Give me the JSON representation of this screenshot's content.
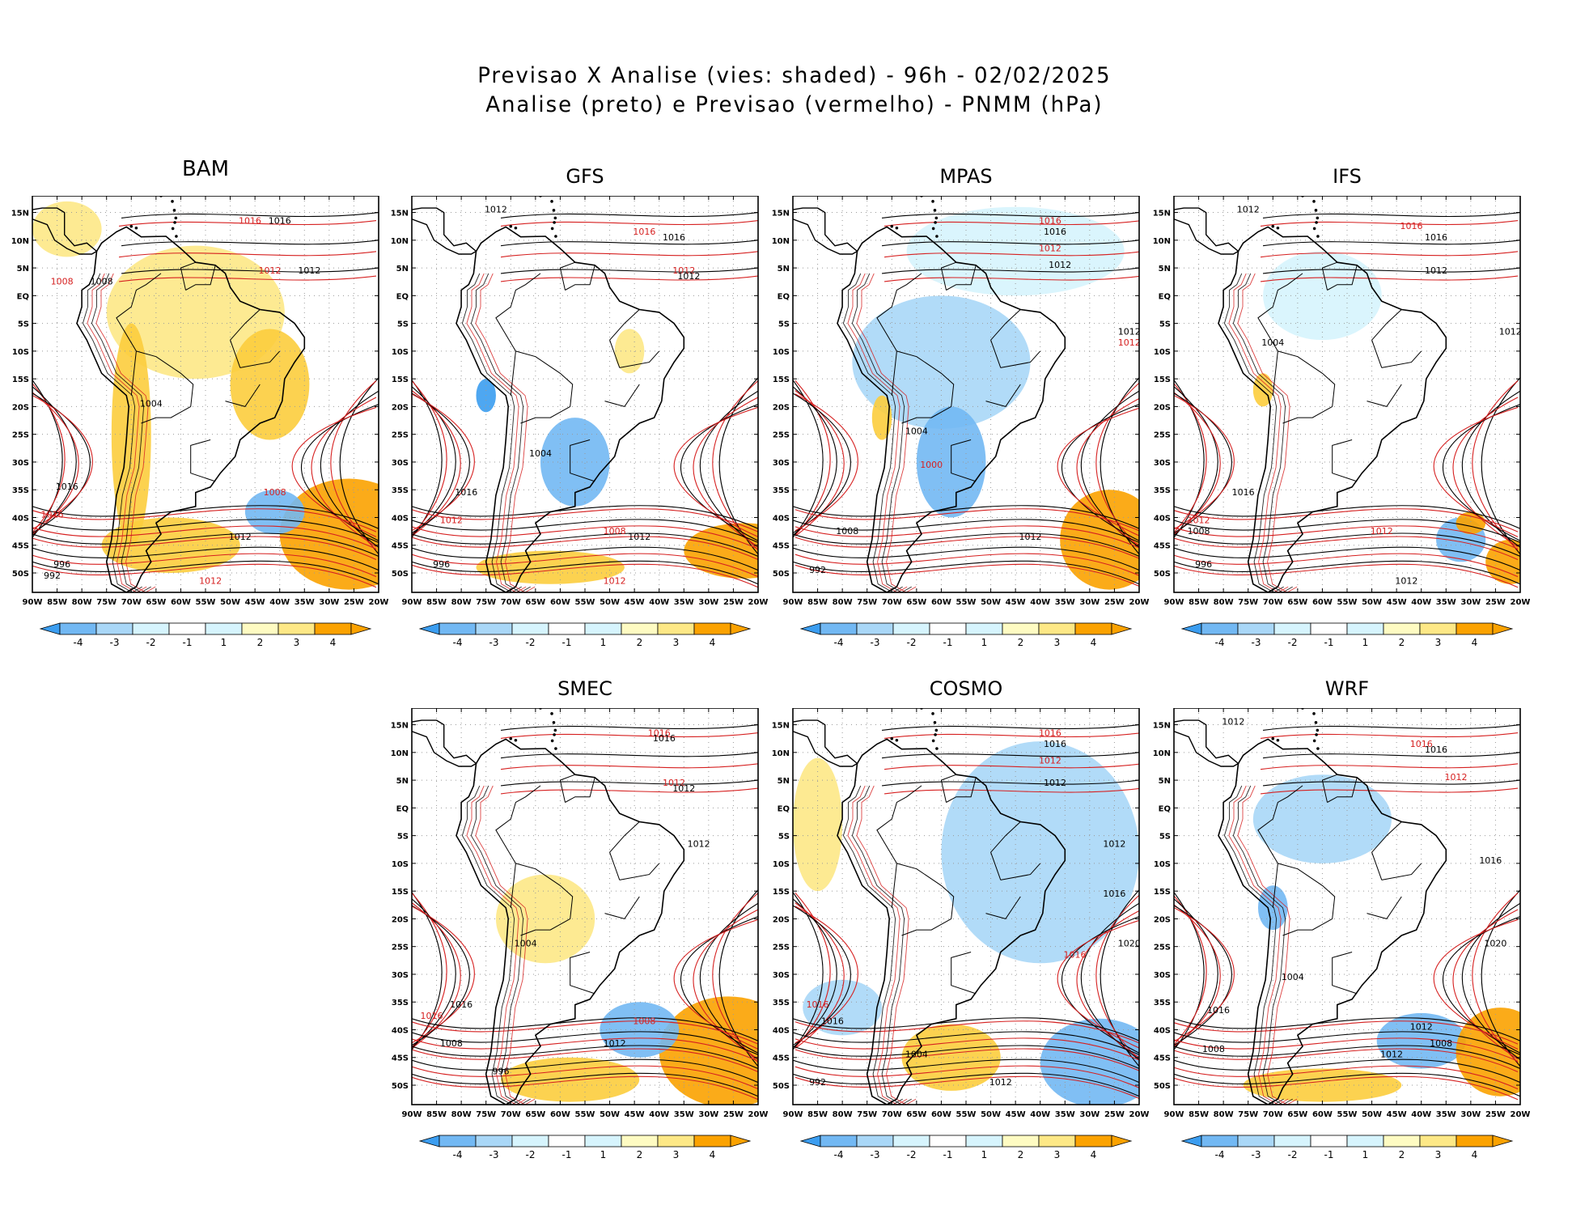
{
  "title": {
    "line1": "Previsao X Analise (vies: shaded) - 96h - 02/02/2025",
    "line2": "Analise (preto) e Previsao (vermelho) - PNMM (hPa)"
  },
  "colors": {
    "neg4": "#3b9df0",
    "neg3": "#72b8f3",
    "neg2": "#a9d7f7",
    "neg1": "#d6f4fd",
    "pos1": "#fefbc2",
    "pos2": "#fde886",
    "pos3": "#fccd3d",
    "pos4": "#fba200",
    "analysis": "#000000",
    "forecast": "#d62020"
  },
  "axes": {
    "lon_ticks": [
      "90W",
      "85W",
      "80W",
      "75W",
      "70W",
      "65W",
      "60W",
      "55W",
      "50W",
      "45W",
      "40W",
      "35W",
      "30W",
      "25W",
      "20W"
    ],
    "lat_ticks": [
      "15N",
      "10N",
      "5N",
      "EQ",
      "5S",
      "10S",
      "15S",
      "20S",
      "25S",
      "30S",
      "35S",
      "40S",
      "45S",
      "50S"
    ]
  },
  "colorbar_labels": [
    "-4",
    "-3",
    "-2",
    "-1",
    "1",
    "2",
    "3",
    "4"
  ],
  "panels": [
    {
      "id": "bam",
      "name": "BAM",
      "blobs": [
        {
          "lon": -83,
          "lat": 12,
          "rx": 7,
          "ry": 5,
          "c": "pos2"
        },
        {
          "lon": -57,
          "lat": -3,
          "rx": 18,
          "ry": 12,
          "c": "pos2"
        },
        {
          "lon": -42,
          "lat": -16,
          "rx": 8,
          "ry": 10,
          "c": "pos3"
        },
        {
          "lon": -70,
          "lat": -25,
          "rx": 4,
          "ry": 20,
          "c": "pos3"
        },
        {
          "lon": -26,
          "lat": -43,
          "rx": 14,
          "ry": 10,
          "c": "pos4"
        },
        {
          "lon": -62,
          "lat": -45,
          "rx": 14,
          "ry": 5,
          "c": "pos3"
        },
        {
          "lon": -41,
          "lat": -39,
          "rx": 6,
          "ry": 4,
          "c": "neg3"
        }
      ],
      "labels": [
        {
          "lon": -40,
          "lat": 13,
          "t": "1016",
          "c": "analysis"
        },
        {
          "lon": -46,
          "lat": 13,
          "t": "1016",
          "c": "forecast"
        },
        {
          "lon": -84,
          "lat": 2,
          "t": "1008",
          "c": "forecast"
        },
        {
          "lon": -76,
          "lat": 2,
          "t": "1008",
          "c": "analysis"
        },
        {
          "lon": -34,
          "lat": 4,
          "t": "1012",
          "c": "analysis"
        },
        {
          "lon": -42,
          "lat": 4,
          "t": "1012",
          "c": "forecast"
        },
        {
          "lon": -66,
          "lat": -20,
          "t": "1004",
          "c": "analysis"
        },
        {
          "lon": -83,
          "lat": -35,
          "t": "1016",
          "c": "analysis"
        },
        {
          "lon": -86,
          "lat": -40,
          "t": "1016",
          "c": "forecast"
        },
        {
          "lon": -41,
          "lat": -36,
          "t": "1008",
          "c": "forecast"
        },
        {
          "lon": -48,
          "lat": -44,
          "t": "1012",
          "c": "analysis"
        },
        {
          "lon": -54,
          "lat": -52,
          "t": "1012",
          "c": "forecast"
        },
        {
          "lon": -84,
          "lat": -49,
          "t": "996",
          "c": "analysis"
        },
        {
          "lon": -86,
          "lat": -51,
          "t": "992",
          "c": "analysis"
        }
      ]
    },
    {
      "id": "gfs",
      "name": "GFS",
      "blobs": [
        {
          "lon": -57,
          "lat": -30,
          "rx": 7,
          "ry": 8,
          "c": "neg3"
        },
        {
          "lon": -46,
          "lat": -10,
          "rx": 3,
          "ry": 4,
          "c": "pos2"
        },
        {
          "lon": -23,
          "lat": -46,
          "rx": 12,
          "ry": 5,
          "c": "pos4"
        },
        {
          "lon": -62,
          "lat": -49,
          "rx": 15,
          "ry": 3,
          "c": "pos3"
        },
        {
          "lon": -75,
          "lat": -18,
          "rx": 2,
          "ry": 3,
          "c": "neg4"
        }
      ],
      "labels": [
        {
          "lon": -73,
          "lat": 15,
          "t": "1012",
          "c": "analysis"
        },
        {
          "lon": -43,
          "lat": 11,
          "t": "1016",
          "c": "forecast"
        },
        {
          "lon": -37,
          "lat": 10,
          "t": "1016",
          "c": "analysis"
        },
        {
          "lon": -35,
          "lat": 4,
          "t": "1012",
          "c": "forecast"
        },
        {
          "lon": -34,
          "lat": 3,
          "t": "1012",
          "c": "analysis"
        },
        {
          "lon": -64,
          "lat": -29,
          "t": "1004",
          "c": "analysis"
        },
        {
          "lon": -79,
          "lat": -36,
          "t": "1016",
          "c": "analysis"
        },
        {
          "lon": -82,
          "lat": -41,
          "t": "1012",
          "c": "forecast"
        },
        {
          "lon": -49,
          "lat": -43,
          "t": "1008",
          "c": "forecast"
        },
        {
          "lon": -44,
          "lat": -44,
          "t": "1012",
          "c": "analysis"
        },
        {
          "lon": -84,
          "lat": -49,
          "t": "996",
          "c": "analysis"
        },
        {
          "lon": -49,
          "lat": -52,
          "t": "1012",
          "c": "forecast"
        }
      ]
    },
    {
      "id": "mpas",
      "name": "MPAS",
      "blobs": [
        {
          "lon": -45,
          "lat": 8,
          "rx": 22,
          "ry": 8,
          "c": "neg1"
        },
        {
          "lon": -60,
          "lat": -12,
          "rx": 18,
          "ry": 12,
          "c": "neg2"
        },
        {
          "lon": -58,
          "lat": -30,
          "rx": 7,
          "ry": 10,
          "c": "neg3"
        },
        {
          "lon": -26,
          "lat": -44,
          "rx": 10,
          "ry": 9,
          "c": "pos4"
        },
        {
          "lon": -72,
          "lat": -22,
          "rx": 2,
          "ry": 4,
          "c": "pos3"
        }
      ],
      "labels": [
        {
          "lon": -38,
          "lat": 13,
          "t": "1016",
          "c": "forecast"
        },
        {
          "lon": -37,
          "lat": 11,
          "t": "1016",
          "c": "analysis"
        },
        {
          "lon": -38,
          "lat": 8,
          "t": "1012",
          "c": "forecast"
        },
        {
          "lon": -36,
          "lat": 5,
          "t": "1012",
          "c": "analysis"
        },
        {
          "lon": -22,
          "lat": -7,
          "t": "1012",
          "c": "analysis"
        },
        {
          "lon": -22,
          "lat": -9,
          "t": "1012",
          "c": "forecast"
        },
        {
          "lon": -65,
          "lat": -25,
          "t": "1004",
          "c": "analysis"
        },
        {
          "lon": -62,
          "lat": -31,
          "t": "1000",
          "c": "forecast"
        },
        {
          "lon": -79,
          "lat": -43,
          "t": "1008",
          "c": "analysis"
        },
        {
          "lon": -42,
          "lat": -44,
          "t": "1012",
          "c": "analysis"
        },
        {
          "lon": -85,
          "lat": -50,
          "t": "992",
          "c": "analysis"
        }
      ]
    },
    {
      "id": "ifs",
      "name": "IFS",
      "blobs": [
        {
          "lon": -72,
          "lat": -17,
          "rx": 2,
          "ry": 3,
          "c": "pos3"
        },
        {
          "lon": -60,
          "lat": 0,
          "rx": 12,
          "ry": 8,
          "c": "neg1"
        },
        {
          "lon": -32,
          "lat": -44,
          "rx": 5,
          "ry": 4,
          "c": "neg3"
        },
        {
          "lon": -22,
          "lat": -48,
          "rx": 5,
          "ry": 4,
          "c": "pos4"
        },
        {
          "lon": -30,
          "lat": -41,
          "rx": 3,
          "ry": 2,
          "c": "pos4"
        }
      ],
      "labels": [
        {
          "lon": -75,
          "lat": 15,
          "t": "1012",
          "c": "analysis"
        },
        {
          "lon": -42,
          "lat": 12,
          "t": "1016",
          "c": "forecast"
        },
        {
          "lon": -37,
          "lat": 10,
          "t": "1016",
          "c": "analysis"
        },
        {
          "lon": -37,
          "lat": 4,
          "t": "1012",
          "c": "analysis"
        },
        {
          "lon": -22,
          "lat": -7,
          "t": "1012",
          "c": "analysis"
        },
        {
          "lon": -70,
          "lat": -9,
          "t": "1004",
          "c": "analysis"
        },
        {
          "lon": -76,
          "lat": -36,
          "t": "1016",
          "c": "analysis"
        },
        {
          "lon": -85,
          "lat": -41,
          "t": "1012",
          "c": "forecast"
        },
        {
          "lon": -85,
          "lat": -43,
          "t": "1008",
          "c": "analysis"
        },
        {
          "lon": -48,
          "lat": -43,
          "t": "1012",
          "c": "forecast"
        },
        {
          "lon": -84,
          "lat": -49,
          "t": "996",
          "c": "analysis"
        },
        {
          "lon": -43,
          "lat": -52,
          "t": "1012",
          "c": "analysis"
        }
      ]
    },
    {
      "id": "smec",
      "name": "SMEC",
      "blobs": [
        {
          "lon": -63,
          "lat": -20,
          "rx": 10,
          "ry": 8,
          "c": "pos2"
        },
        {
          "lon": -26,
          "lat": -44,
          "rx": 14,
          "ry": 10,
          "c": "pos4"
        },
        {
          "lon": -44,
          "lat": -40,
          "rx": 8,
          "ry": 5,
          "c": "neg3"
        },
        {
          "lon": -58,
          "lat": -49,
          "rx": 14,
          "ry": 4,
          "c": "pos3"
        }
      ],
      "labels": [
        {
          "lon": -40,
          "lat": 13,
          "t": "1016",
          "c": "forecast"
        },
        {
          "lon": -39,
          "lat": 12,
          "t": "1016",
          "c": "analysis"
        },
        {
          "lon": -37,
          "lat": 4,
          "t": "1012",
          "c": "forecast"
        },
        {
          "lon": -35,
          "lat": 3,
          "t": "1012",
          "c": "analysis"
        },
        {
          "lon": -32,
          "lat": -7,
          "t": "1012",
          "c": "analysis"
        },
        {
          "lon": -67,
          "lat": -25,
          "t": "1004",
          "c": "analysis"
        },
        {
          "lon": -80,
          "lat": -36,
          "t": "1016",
          "c": "analysis"
        },
        {
          "lon": -86,
          "lat": -38,
          "t": "1016",
          "c": "forecast"
        },
        {
          "lon": -82,
          "lat": -43,
          "t": "1008",
          "c": "analysis"
        },
        {
          "lon": -49,
          "lat": -43,
          "t": "1012",
          "c": "analysis"
        },
        {
          "lon": -43,
          "lat": -39,
          "t": "1008",
          "c": "forecast"
        },
        {
          "lon": -72,
          "lat": -48,
          "t": "996",
          "c": "analysis"
        }
      ]
    },
    {
      "id": "cosmo",
      "name": "COSMO",
      "blobs": [
        {
          "lon": -40,
          "lat": -8,
          "rx": 20,
          "ry": 20,
          "c": "neg2"
        },
        {
          "lon": -85,
          "lat": -3,
          "rx": 5,
          "ry": 12,
          "c": "pos2"
        },
        {
          "lon": -28,
          "lat": -46,
          "rx": 12,
          "ry": 8,
          "c": "neg3"
        },
        {
          "lon": -58,
          "lat": -45,
          "rx": 10,
          "ry": 6,
          "c": "pos3"
        },
        {
          "lon": -80,
          "lat": -36,
          "rx": 8,
          "ry": 5,
          "c": "neg2"
        }
      ],
      "labels": [
        {
          "lon": -38,
          "lat": 13,
          "t": "1016",
          "c": "forecast"
        },
        {
          "lon": -37,
          "lat": 11,
          "t": "1016",
          "c": "analysis"
        },
        {
          "lon": -38,
          "lat": 8,
          "t": "1012",
          "c": "forecast"
        },
        {
          "lon": -37,
          "lat": 4,
          "t": "1012",
          "c": "analysis"
        },
        {
          "lon": -25,
          "lat": -7,
          "t": "1012",
          "c": "analysis"
        },
        {
          "lon": -25,
          "lat": -16,
          "t": "1016",
          "c": "analysis"
        },
        {
          "lon": -22,
          "lat": -25,
          "t": "1020",
          "c": "analysis"
        },
        {
          "lon": -33,
          "lat": -27,
          "t": "1016",
          "c": "forecast"
        },
        {
          "lon": -85,
          "lat": -36,
          "t": "1016",
          "c": "forecast"
        },
        {
          "lon": -82,
          "lat": -39,
          "t": "1016",
          "c": "analysis"
        },
        {
          "lon": -65,
          "lat": -45,
          "t": "1004",
          "c": "analysis"
        },
        {
          "lon": -48,
          "lat": -50,
          "t": "1012",
          "c": "analysis"
        },
        {
          "lon": -85,
          "lat": -50,
          "t": "992",
          "c": "analysis"
        }
      ]
    },
    {
      "id": "wrf",
      "name": "WRF",
      "blobs": [
        {
          "lon": -60,
          "lat": -2,
          "rx": 14,
          "ry": 8,
          "c": "neg2"
        },
        {
          "lon": -40,
          "lat": -42,
          "rx": 9,
          "ry": 5,
          "c": "neg3"
        },
        {
          "lon": -24,
          "lat": -44,
          "rx": 9,
          "ry": 8,
          "c": "pos4"
        },
        {
          "lon": -60,
          "lat": -50,
          "rx": 16,
          "ry": 3,
          "c": "pos3"
        },
        {
          "lon": -70,
          "lat": -18,
          "rx": 3,
          "ry": 4,
          "c": "neg3"
        }
      ],
      "labels": [
        {
          "lon": -78,
          "lat": 15,
          "t": "1012",
          "c": "analysis"
        },
        {
          "lon": -40,
          "lat": 11,
          "t": "1016",
          "c": "forecast"
        },
        {
          "lon": -37,
          "lat": 10,
          "t": "1016",
          "c": "analysis"
        },
        {
          "lon": -33,
          "lat": 5,
          "t": "1012",
          "c": "forecast"
        },
        {
          "lon": -26,
          "lat": -10,
          "t": "1016",
          "c": "analysis"
        },
        {
          "lon": -25,
          "lat": -25,
          "t": "1020",
          "c": "analysis"
        },
        {
          "lon": -66,
          "lat": -31,
          "t": "1004",
          "c": "analysis"
        },
        {
          "lon": -81,
          "lat": -37,
          "t": "1016",
          "c": "analysis"
        },
        {
          "lon": -40,
          "lat": -40,
          "t": "1012",
          "c": "analysis"
        },
        {
          "lon": -46,
          "lat": -45,
          "t": "1012",
          "c": "analysis"
        },
        {
          "lon": -36,
          "lat": -43,
          "t": "1008",
          "c": "analysis"
        },
        {
          "lon": -82,
          "lat": -44,
          "t": "1008",
          "c": "analysis"
        }
      ]
    }
  ]
}
